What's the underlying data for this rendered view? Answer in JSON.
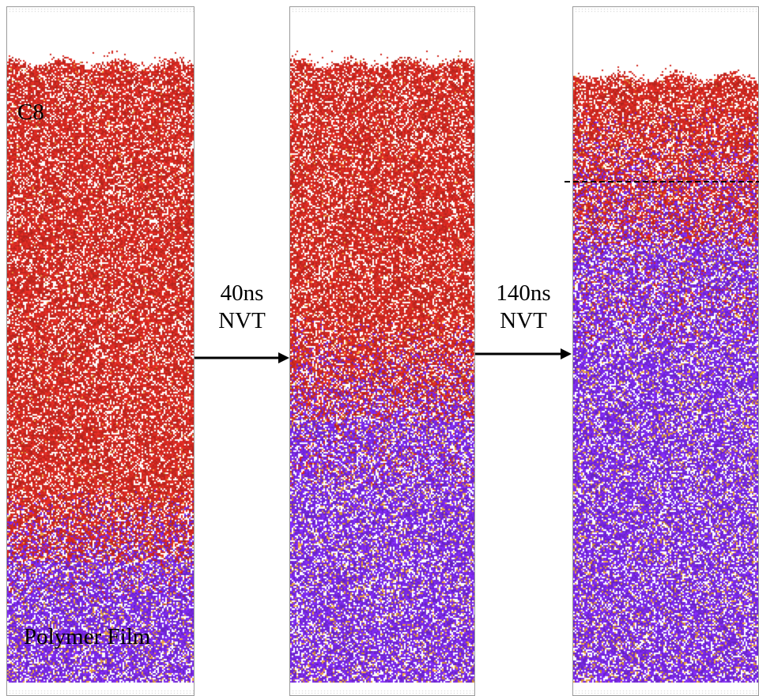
{
  "labels": {
    "top_layer": "C8",
    "bottom_layer": "Polymer Film"
  },
  "steps": [
    {
      "duration": "40ns",
      "ensemble": "NVT"
    },
    {
      "duration": "140ns",
      "ensemble": "NVT"
    }
  ],
  "colors": {
    "solvent": "#d42a22",
    "polymer": "#7a28e6",
    "highlight": "#e8a040",
    "background": "#ffffff",
    "border": "#9a9a9a",
    "arrow": "#000000"
  },
  "snapshots": [
    {
      "name": "initial",
      "solvent_fill_level": 0.92,
      "polymer_fraction": 0.22
    },
    {
      "name": "after-40ns",
      "solvent_fill_level": 0.92,
      "polymer_fraction": 0.45
    },
    {
      "name": "after-140ns",
      "solvent_fill_level": 0.9,
      "polymer_fraction": 0.75
    }
  ]
}
